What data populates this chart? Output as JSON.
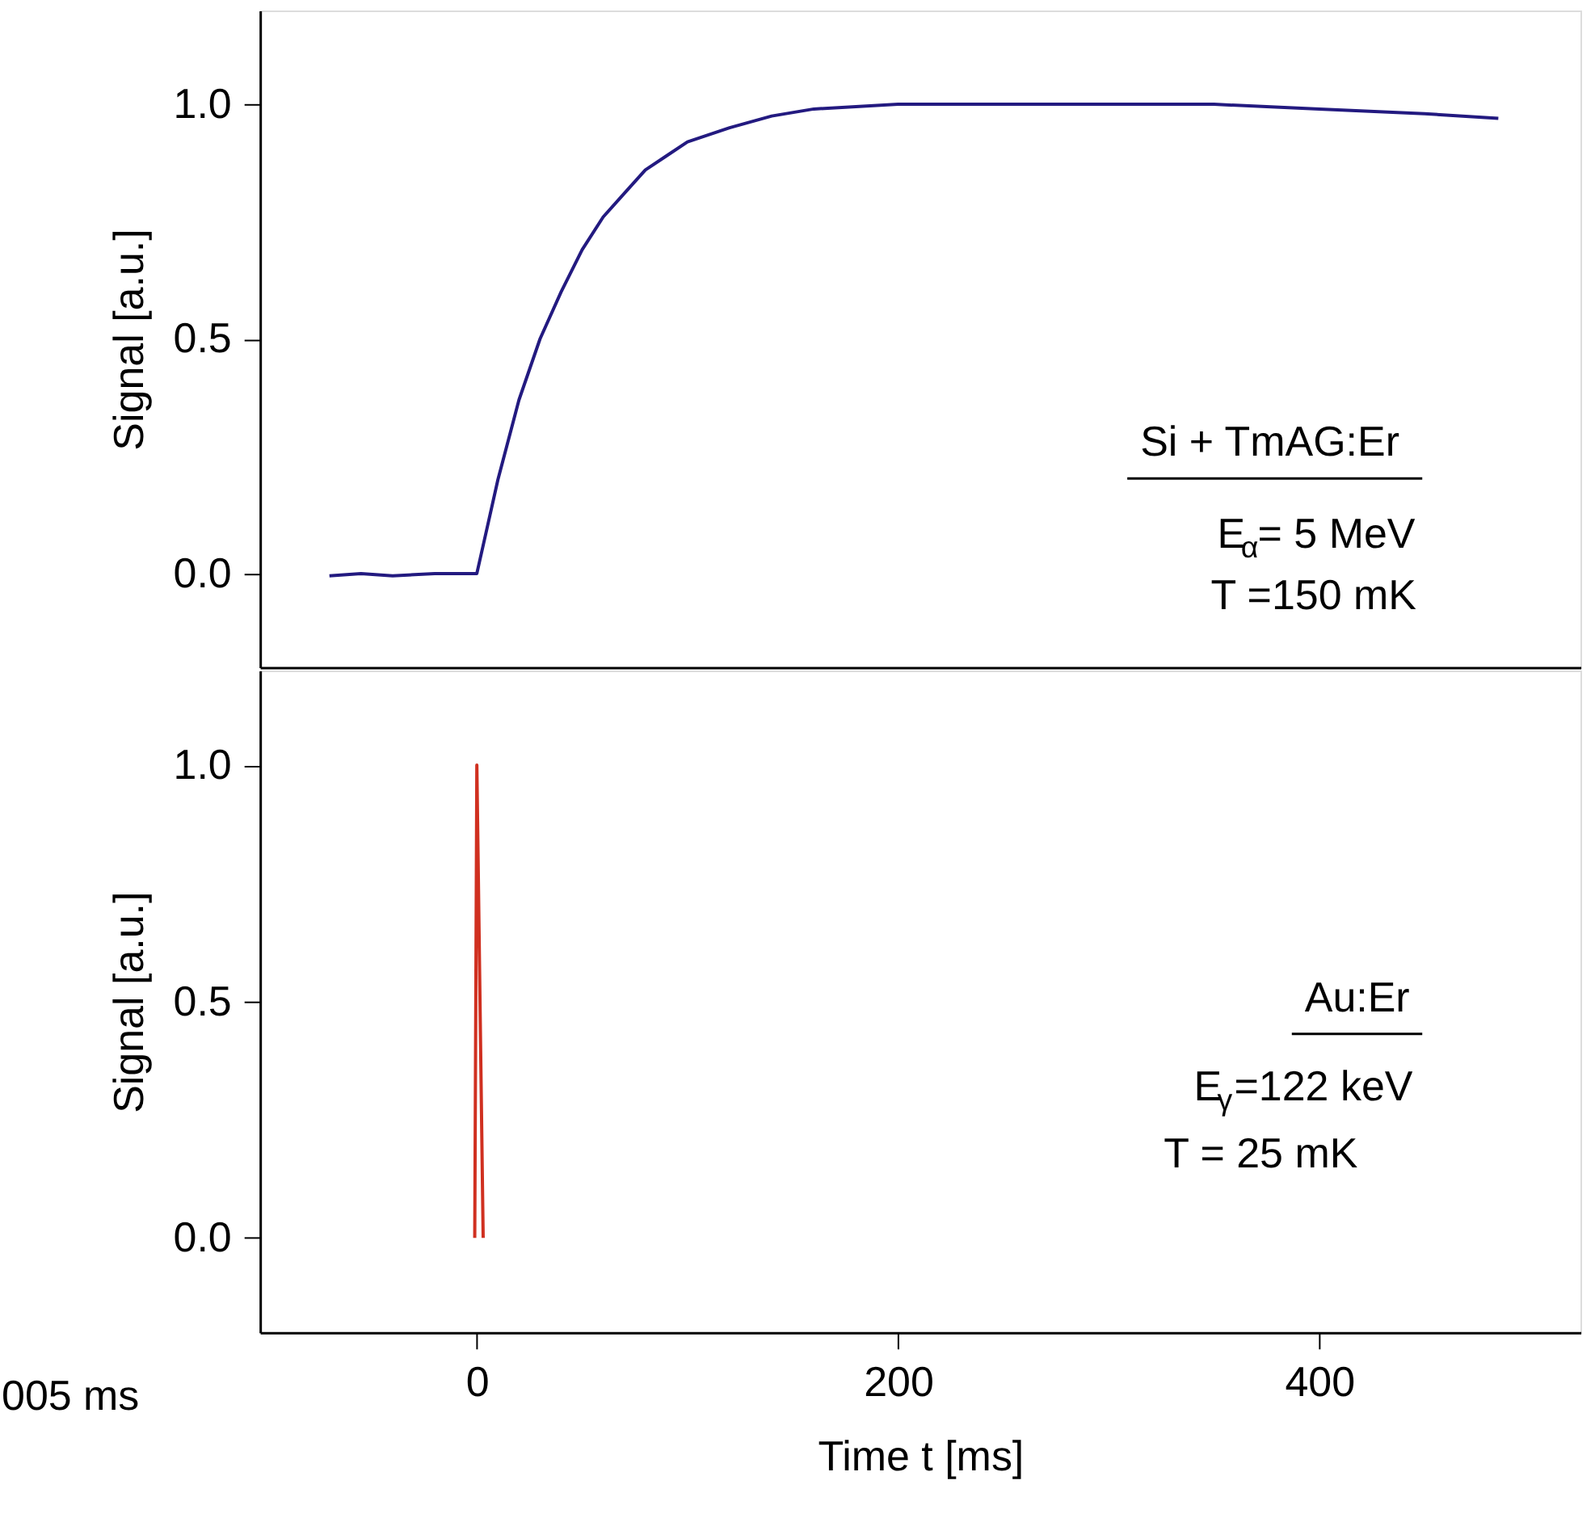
{
  "chart_data": [
    {
      "type": "line",
      "xlim": [
        -103,
        524
      ],
      "xticks": [
        0,
        200,
        400
      ],
      "ylim": [
        -0.2,
        1.2
      ],
      "yticks": [
        {
          "value": 0,
          "label": "0.0"
        },
        {
          "value": 0.5,
          "label": "0.5"
        },
        {
          "value": 1,
          "label": "1.0"
        }
      ],
      "ylabel": "Signal  [a.u.]",
      "tick_labels": "y",
      "grid": false,
      "legend": false,
      "series": [
        {
          "color": "#231a80",
          "x": [
            -70,
            -55,
            -40,
            -20,
            -5,
            0,
            5,
            10,
            20,
            30,
            40,
            50,
            60,
            70,
            80,
            90,
            100,
            120,
            140,
            160,
            180,
            200,
            250,
            300,
            350,
            400,
            450,
            485
          ],
          "values": [
            -0.005,
            0.0,
            -0.005,
            0.0,
            0.0,
            0.0,
            0.1,
            0.2,
            0.37,
            0.5,
            0.6,
            0.69,
            0.76,
            0.81,
            0.86,
            0.89,
            0.92,
            0.95,
            0.975,
            0.99,
            0.995,
            1.0,
            1.0,
            1.0,
            1.0,
            0.99,
            0.98,
            0.97
          ]
        }
      ],
      "annotations": [
        "Si + TmAG:Er",
        "E$_{α}$= 5 MeV",
        "T =150 mK"
      ]
    },
    {
      "type": "line",
      "xlim": [
        -103,
        524
      ],
      "xticks": [
        0,
        200,
        400
      ],
      "ylim": [
        -0.2,
        1.2
      ],
      "yticks": [
        {
          "value": 0,
          "label": "0.0"
        },
        {
          "value": 0.5,
          "label": "0.5"
        },
        {
          "value": 1,
          "label": "1.0"
        }
      ],
      "ylabel": "Signal  [a.u.]",
      "xlabel": "Time  t [ms]",
      "grid": false,
      "legend": false,
      "series": [
        {
          "color": "#d03020",
          "x": [
            -1,
            0,
            3
          ],
          "values": [
            0.0,
            1.0,
            0.0
          ]
        }
      ],
      "annotations": [
        "Au:Er",
        "E$_{γ}$=122 keV",
        "T =   25 mK",
        "005 ms"
      ]
    }
  ]
}
